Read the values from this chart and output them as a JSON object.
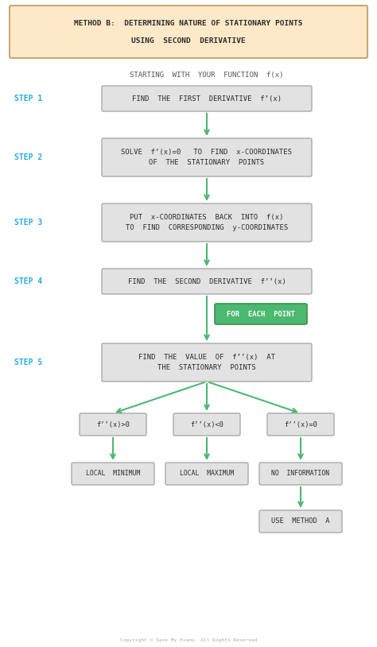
{
  "bg_color": "#ffffff",
  "header_bg": "#fde9c8",
  "header_border": "#c9a96e",
  "header_text_line1": "METHOD B:  DETERMINING NATURE OF STATIONARY POINTS",
  "header_text_line2": "USING  SECOND  DERIVATIVE",
  "header_text_color": "#2a2a2a",
  "step_color": "#29abe2",
  "box_bg": "#e2e2e2",
  "box_border": "#aaaaaa",
  "green_box_bg": "#4db870",
  "green_box_border": "#3a9050",
  "arrow_color": "#4db870",
  "text_color": "#2a2a2a",
  "start_text": "STARTING  WITH  YOUR  FUNCTION  f(x)",
  "steps": [
    {
      "label": "STEP 1",
      "text": "FIND  THE  FIRST  DERIVATIVE  f’(x)"
    },
    {
      "label": "STEP 2",
      "text": "SOLVE  f’(x)=0   TO  FIND  x-COORDINATES\nOF  THE  STATIONARY  POINTS"
    },
    {
      "label": "STEP 3",
      "text": "PUT  x-COORDINATES  BACK  INTO  f(x)\nTO  FIND  CORRESPONDING  y-COORDINATES"
    },
    {
      "label": "STEP 4",
      "text": "FIND  THE  SECOND  DERIVATIVE  f’’(x)"
    }
  ],
  "for_each_text": "FOR  EACH  POINT",
  "step5_label": "STEP 5",
  "step5_text": "FIND  THE  VALUE  OF  f’’(x)  AT\nTHE  STATIONARY  POINTS",
  "branches": [
    {
      "text": "f’’(x)>0",
      "result": "LOCAL  MINIMUM"
    },
    {
      "text": "f’’(x)<0",
      "result": "LOCAL  MAXIMUM"
    },
    {
      "text": "f’’(x)=0",
      "result": "NO  INFORMATION"
    }
  ],
  "final_text": "USE  METHOD  A",
  "footer_text": "Copyright © Save My Exams. All Rights Reserved"
}
